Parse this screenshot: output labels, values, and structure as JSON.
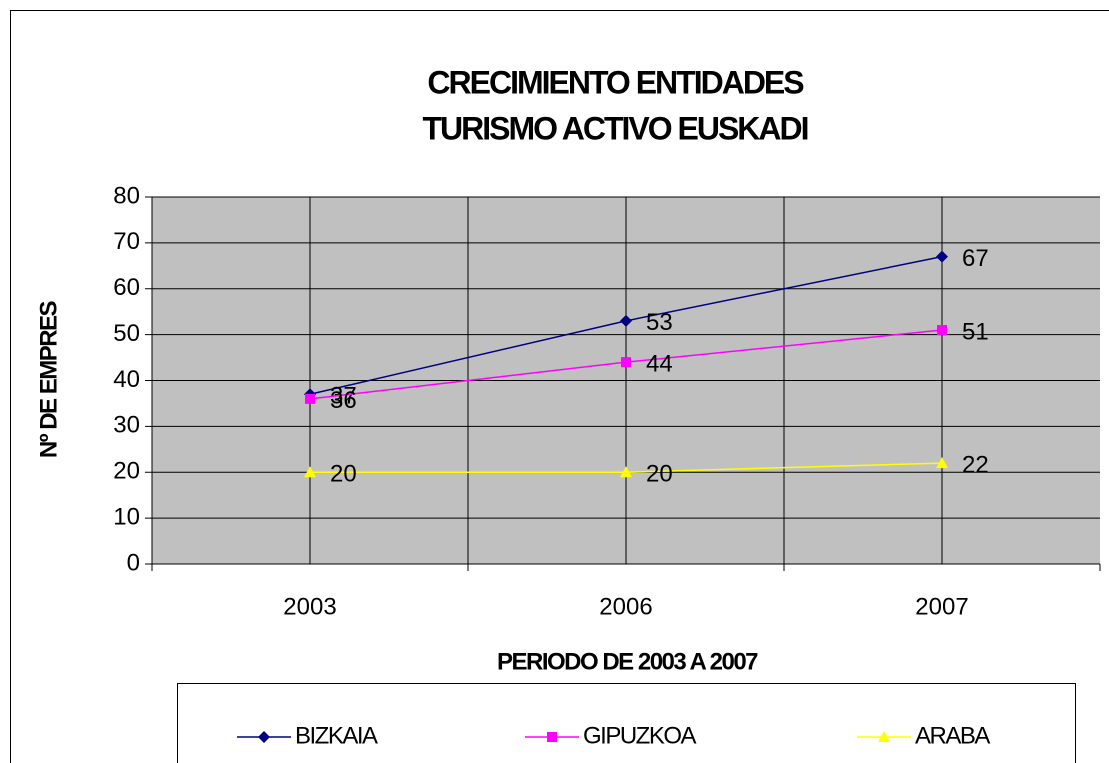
{
  "chart_data": {
    "type": "line",
    "title": [
      "CRECIMIENTO ENTIDADES",
      "TURISMO ACTIVO EUSKADI"
    ],
    "x_label": "PERIODO DE 2003 A 2007",
    "y_label": "Nº DE EMPRES",
    "categories": [
      "2003",
      "2006",
      "2007"
    ],
    "series": [
      {
        "name": "BIZKAIA",
        "color": "#000080",
        "marker": "diamond",
        "values": [
          37,
          53,
          67
        ]
      },
      {
        "name": "GIPUZKOA",
        "color": "#ff00ff",
        "marker": "square",
        "values": [
          36,
          44,
          51
        ]
      },
      {
        "name": "ARABA",
        "color": "#ffff00",
        "marker": "triangle",
        "values": [
          20,
          20,
          22
        ]
      }
    ],
    "ylim": [
      0,
      80
    ],
    "yticks": [
      0,
      10,
      20,
      30,
      40,
      50,
      60,
      70,
      80
    ],
    "grid": true,
    "legend": "bottom"
  }
}
